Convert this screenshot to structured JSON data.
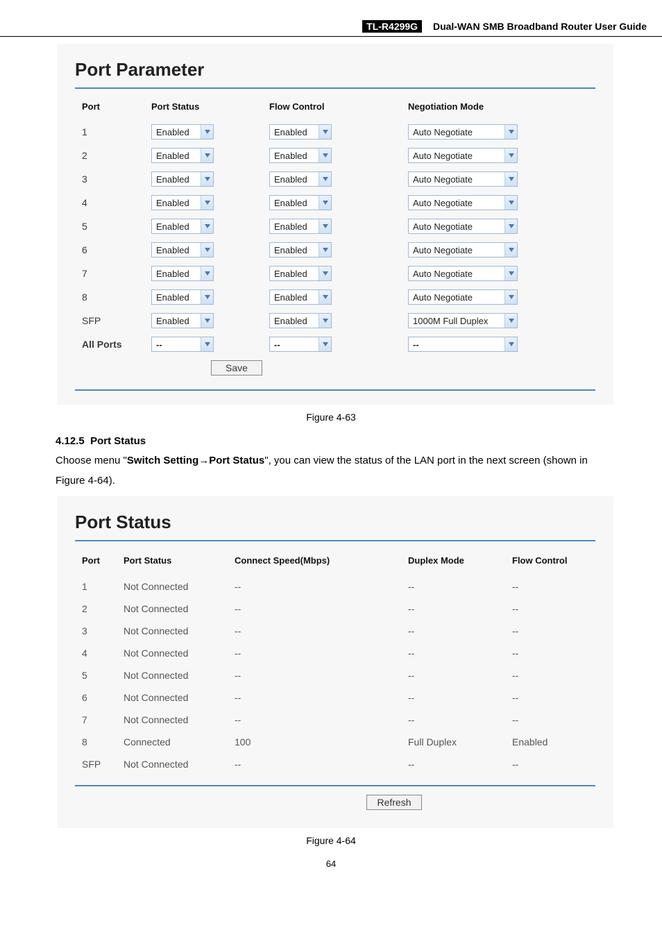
{
  "header": {
    "model": "TL-R4299G",
    "title": "Dual-WAN SMB Broadband Router User Guide"
  },
  "port_parameter": {
    "title": "Port Parameter",
    "headers": {
      "port": "Port",
      "status": "Port Status",
      "flow": "Flow Control",
      "neg": "Negotiation Mode"
    },
    "rows": [
      {
        "port": "1",
        "status": "Enabled",
        "flow": "Enabled",
        "neg": "Auto Negotiate"
      },
      {
        "port": "2",
        "status": "Enabled",
        "flow": "Enabled",
        "neg": "Auto Negotiate"
      },
      {
        "port": "3",
        "status": "Enabled",
        "flow": "Enabled",
        "neg": "Auto Negotiate"
      },
      {
        "port": "4",
        "status": "Enabled",
        "flow": "Enabled",
        "neg": "Auto Negotiate"
      },
      {
        "port": "5",
        "status": "Enabled",
        "flow": "Enabled",
        "neg": "Auto Negotiate"
      },
      {
        "port": "6",
        "status": "Enabled",
        "flow": "Enabled",
        "neg": "Auto Negotiate"
      },
      {
        "port": "7",
        "status": "Enabled",
        "flow": "Enabled",
        "neg": "Auto Negotiate"
      },
      {
        "port": "8",
        "status": "Enabled",
        "flow": "Enabled",
        "neg": "Auto Negotiate"
      },
      {
        "port": "SFP",
        "status": "Enabled",
        "flow": "Enabled",
        "neg": "1000M Full Duplex"
      }
    ],
    "all_ports": {
      "label": "All Ports",
      "status": "--",
      "flow": "--",
      "neg": "--"
    },
    "save_label": "Save",
    "caption": "Figure 4-63"
  },
  "section_port_status": {
    "number": "4.12.5",
    "heading": "Port Status",
    "para_prefix": "Choose menu \"",
    "para_bold1": "Switch Setting",
    "para_arrow": "→",
    "para_bold2": "Port Status",
    "para_suffix": "\", you can view the status of the LAN port in the next screen (shown in Figure 4-64)."
  },
  "port_status": {
    "title": "Port Status",
    "headers": {
      "port": "Port",
      "status": "Port Status",
      "speed": "Connect Speed(Mbps)",
      "duplex": "Duplex Mode",
      "flow": "Flow Control"
    },
    "rows": [
      {
        "port": "1",
        "status": "Not Connected",
        "speed": "--",
        "duplex": "--",
        "flow": "--"
      },
      {
        "port": "2",
        "status": "Not Connected",
        "speed": "--",
        "duplex": "--",
        "flow": "--"
      },
      {
        "port": "3",
        "status": "Not Connected",
        "speed": "--",
        "duplex": "--",
        "flow": "--"
      },
      {
        "port": "4",
        "status": "Not Connected",
        "speed": "--",
        "duplex": "--",
        "flow": "--"
      },
      {
        "port": "5",
        "status": "Not Connected",
        "speed": "--",
        "duplex": "--",
        "flow": "--"
      },
      {
        "port": "6",
        "status": "Not Connected",
        "speed": "--",
        "duplex": "--",
        "flow": "--"
      },
      {
        "port": "7",
        "status": "Not Connected",
        "speed": "--",
        "duplex": "--",
        "flow": "--"
      },
      {
        "port": "8",
        "status": "Connected",
        "speed": "100",
        "duplex": "Full Duplex",
        "flow": "Enabled"
      },
      {
        "port": "SFP",
        "status": "Not Connected",
        "speed": "--",
        "duplex": "--",
        "flow": "--"
      }
    ],
    "refresh_label": "Refresh",
    "caption": "Figure 4-64"
  },
  "page_number": "64",
  "style": {
    "panel_bg": "#f7f7f7",
    "rule_color": "#4a88c7",
    "select_border": "#9fb9d4",
    "select_arrow_fill": "#4d7aa8"
  }
}
